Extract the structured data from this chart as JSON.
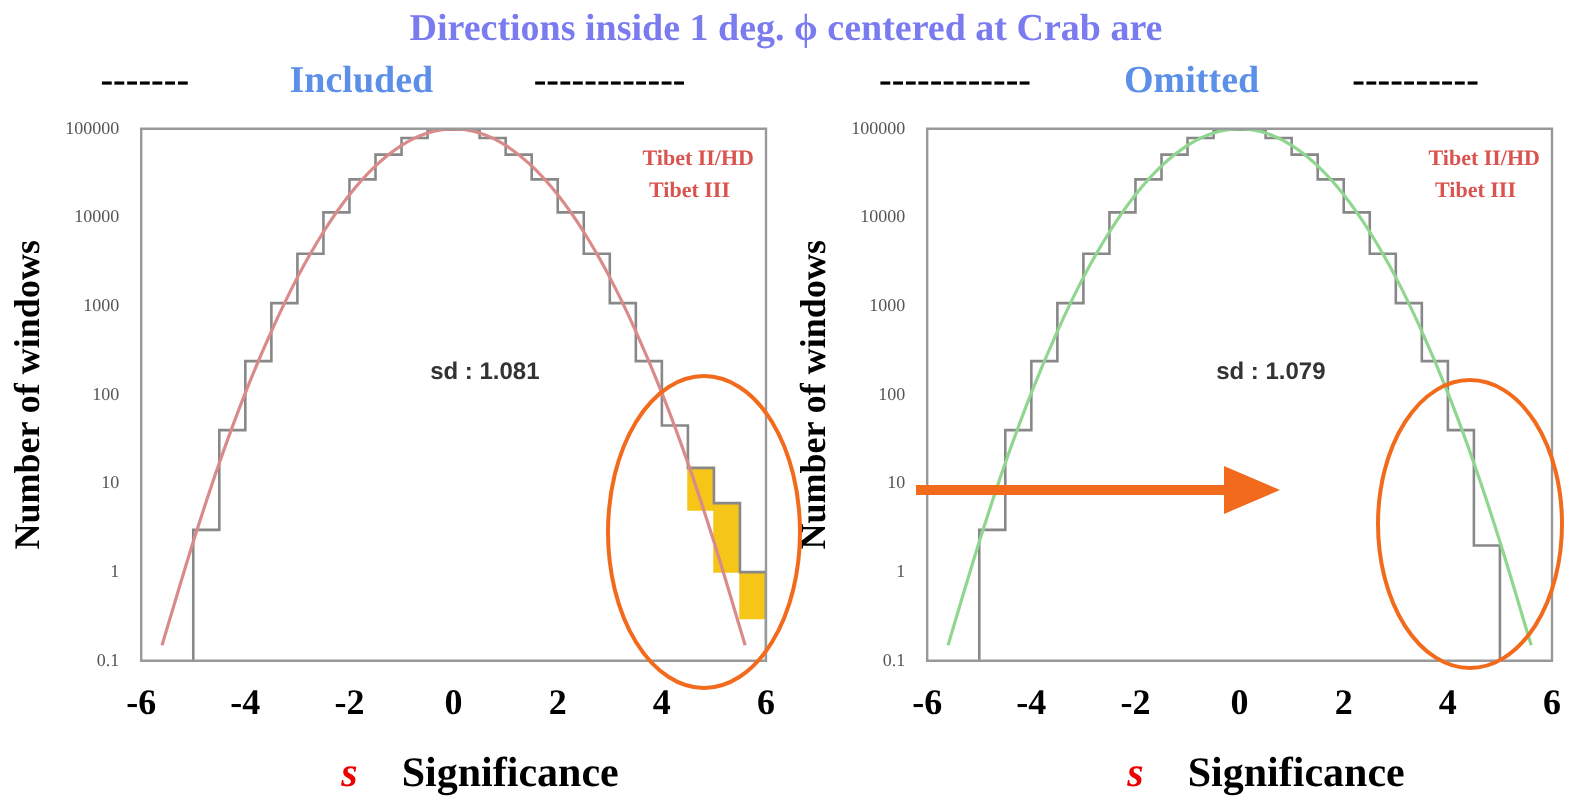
{
  "chart_data": [
    {
      "type": "histogram",
      "title": "Directions  inside 1 deg. ϕ centered at Crab are",
      "subtitle": "-------   Included   ------------",
      "xlabel": "s   Significance",
      "ylabel": "Number of windows",
      "annotations": [
        "Tibet II/HD",
        "Tibet III",
        "sd : 1.081"
      ],
      "log": "y",
      "xlim": [
        -6,
        6
      ],
      "xticks": [
        -6,
        -4,
        -2,
        0,
        2,
        4,
        6
      ],
      "ylim": [
        0.1,
        100000
      ],
      "yticks": [
        0.1,
        1,
        10,
        100,
        1000,
        10000,
        100000
      ],
      "legend": false,
      "series": [
        {
          "color": "#888888",
          "bins": [
            -5,
            -4.5,
            -4,
            -3.5,
            -3,
            -2.5,
            -2,
            -1.5,
            -1,
            -0.5,
            0,
            0.5,
            1,
            1.5,
            2,
            2.5,
            3,
            3.5,
            4,
            4.5,
            5,
            5.5,
            6
          ],
          "values": [
            3,
            40,
            240,
            1080,
            3900,
            11400,
            26900,
            51200,
            78600,
            97400,
            97400,
            78600,
            51200,
            26900,
            11400,
            3900,
            1080,
            240,
            45,
            15,
            6,
            1
          ]
        },
        {
          "type": "line",
          "color": "#d98a8a",
          "marker": "none",
          "line_style": "solid",
          "x": [
            -5.6,
            -5,
            -4.5,
            -4,
            -3.5,
            -3,
            -2.5,
            -2,
            -1.5,
            -1,
            -0.5,
            0,
            0.5,
            1,
            1.5,
            2,
            2.5,
            3,
            3.5,
            4,
            4.5,
            5,
            5.6
          ],
          "values": [
            0.15,
            2.2,
            17,
            105,
            520,
            2110,
            6860,
            18000,
            38100,
            65100,
            89800,
            100000,
            89800,
            65100,
            38100,
            18000,
            6860,
            2110,
            520,
            105,
            17,
            2.2,
            0.15
          ]
        },
        {
          "type": "bar",
          "color": "#f5c518",
          "x": [
            4.75,
            5.25,
            5.75
          ],
          "base": [
            5,
            1,
            0.3
          ],
          "values": [
            10,
            5,
            0.7
          ]
        }
      ]
    },
    {
      "type": "histogram",
      "subtitle": "------------   Omitted   ----------",
      "xlabel": "s   Significance",
      "ylabel": "Number of windows",
      "annotations": [
        "Tibet II/HD",
        "Tibet III",
        "sd : 1.079"
      ],
      "log": "y",
      "xlim": [
        -6,
        6
      ],
      "xticks": [
        -6,
        -4,
        -2,
        0,
        2,
        4,
        6
      ],
      "ylim": [
        0.1,
        100000
      ],
      "yticks": [
        0.1,
        1,
        10,
        100,
        1000,
        10000,
        100000
      ],
      "legend": false,
      "series": [
        {
          "color": "#888888",
          "bins": [
            -5,
            -4.5,
            -4,
            -3.5,
            -3,
            -2.5,
            -2,
            -1.5,
            -1,
            -0.5,
            0,
            0.5,
            1,
            1.5,
            2,
            2.5,
            3,
            3.5,
            4,
            4.5,
            5
          ],
          "values": [
            3,
            40,
            240,
            1080,
            3900,
            11400,
            26900,
            51200,
            78600,
            97400,
            97400,
            78600,
            51200,
            26900,
            11400,
            3900,
            1080,
            240,
            40,
            2
          ]
        },
        {
          "type": "line",
          "color": "#8fd68f",
          "marker": "none",
          "line_style": "solid",
          "x": [
            -5.6,
            -5,
            -4.5,
            -4,
            -3.5,
            -3,
            -2.5,
            -2,
            -1.5,
            -1,
            -0.5,
            0,
            0.5,
            1,
            1.5,
            2,
            2.5,
            3,
            3.5,
            4,
            4.5,
            5,
            5.6
          ],
          "values": [
            0.15,
            2.2,
            17,
            105,
            520,
            2110,
            6860,
            18000,
            38100,
            65100,
            89800,
            100000,
            89800,
            65100,
            38100,
            18000,
            6860,
            2110,
            520,
            105,
            17,
            2.2,
            0.15
          ]
        }
      ]
    }
  ]
}
